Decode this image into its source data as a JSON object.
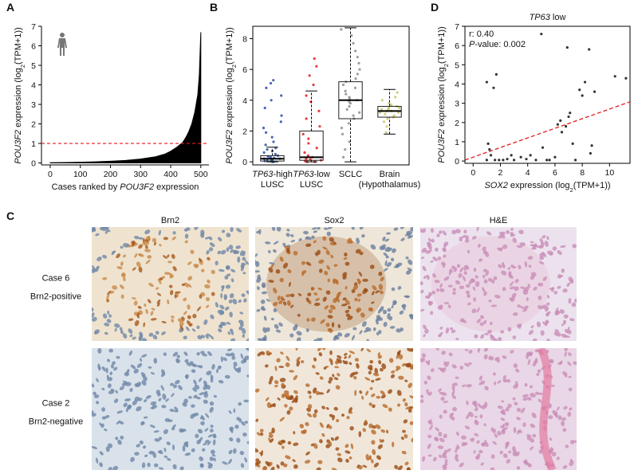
{
  "chart_data": [
    {
      "panel_label": "A",
      "type": "area",
      "x": [
        0,
        50,
        100,
        150,
        200,
        250,
        300,
        350,
        380,
        400,
        420,
        440,
        450,
        460,
        470,
        480,
        490,
        495,
        500
      ],
      "values": [
        0.01,
        0.02,
        0.04,
        0.06,
        0.09,
        0.13,
        0.2,
        0.32,
        0.45,
        0.6,
        0.8,
        1.05,
        1.3,
        1.6,
        2.0,
        2.6,
        3.5,
        4.5,
        6.7
      ],
      "color": "#000000",
      "xlabel": "Cases ranked by POU3F2 expression",
      "ylabel": "POU3F2 expression (log2(TPM+1))",
      "xlim": [
        -29,
        527
      ],
      "xticks": [
        0,
        100,
        200,
        300,
        400,
        500
      ],
      "ylim": [
        -0.1,
        7
      ],
      "yticks": [
        0,
        1,
        2,
        3,
        4,
        5,
        6,
        7
      ],
      "hline": 1,
      "hline_color": "#e41a1c"
    },
    {
      "panel_label": "B",
      "type": "box",
      "categories": [
        [
          "TP63-high",
          "LUSC"
        ],
        [
          "TP63-low",
          "LUSC"
        ],
        [
          "SCLC"
        ],
        [
          "Brain",
          "(Hypothalamus)"
        ]
      ],
      "ylabel": "POU3F2 expression (log2(TPM+1))",
      "ylim": [
        -0.2,
        8.8
      ],
      "yticks": [
        0,
        2,
        4,
        6,
        8
      ],
      "boxes": [
        {
          "color": "#2a4ea6",
          "min": 0,
          "q1": 0.05,
          "median": 0.2,
          "q3": 0.4,
          "max": 0.95,
          "points": [
            0,
            0,
            0.05,
            0.1,
            0.1,
            0.15,
            0.2,
            0.2,
            0.25,
            0.3,
            0.35,
            0.4,
            0.5,
            0.6,
            0.7,
            0.8,
            0.9,
            1.1,
            1.3,
            1.6,
            1.9,
            2.2,
            2.6,
            3.0,
            3.5,
            4.0,
            4.3,
            4.8,
            5.1,
            5.3
          ]
        },
        {
          "color": "#e41a1c",
          "min": 0,
          "q1": 0.1,
          "median": 0.3,
          "q3": 2.0,
          "max": 4.6,
          "points": [
            0,
            0,
            0.05,
            0.1,
            0.15,
            0.2,
            0.3,
            0.4,
            0.6,
            0.9,
            1.2,
            1.5,
            1.8,
            2.3,
            2.8,
            3.3,
            3.9,
            4.3,
            5.0,
            5.6,
            6.2,
            6.7
          ]
        },
        {
          "color": "#8c8c8c",
          "min": 0,
          "q1": 2.8,
          "median": 4.0,
          "q3": 5.2,
          "max": 8.7,
          "points": [
            0.3,
            0.8,
            1.3,
            1.8,
            2.2,
            2.5,
            2.8,
            3.0,
            3.2,
            3.4,
            3.6,
            3.8,
            3.9,
            4.0,
            4.1,
            4.2,
            4.4,
            4.6,
            4.8,
            5.0,
            5.2,
            5.4,
            5.7,
            6.0,
            6.4,
            6.8,
            7.2,
            7.7,
            8.2,
            8.6
          ]
        },
        {
          "color": "#c9c46a",
          "min": 1.8,
          "q1": 2.9,
          "median": 3.3,
          "q3": 3.6,
          "max": 4.7,
          "points": [
            1.9,
            2.3,
            2.6,
            2.8,
            2.9,
            3.0,
            3.1,
            3.2,
            3.2,
            3.3,
            3.3,
            3.4,
            3.4,
            3.5,
            3.5,
            3.6,
            3.7,
            3.8,
            4.0,
            4.2,
            4.5
          ]
        }
      ]
    },
    {
      "panel_label": "D",
      "type": "scatter",
      "title": "TP63 low",
      "annotations": [
        "r: 0.40",
        "P-value: 0.002"
      ],
      "xlabel": "SOX2 expression (log2(TPM+1))",
      "ylabel": "POU3F2 expression (log2(TPM+1))",
      "x": [
        1.0,
        1.5,
        1.7,
        1.1,
        1.2,
        1.3,
        1.0,
        1.6,
        1.9,
        2.2,
        2.5,
        2.8,
        3.0,
        3.5,
        3.9,
        4.2,
        4.6,
        5.0,
        5.1,
        5.4,
        5.6,
        6.0,
        6.2,
        6.4,
        6.5,
        6.9,
        7.0,
        7.1,
        7.3,
        7.5,
        7.8,
        8.0,
        8.2,
        8.5,
        8.6,
        8.7,
        8.9,
        10.4,
        11.2,
        6.8
      ],
      "values": [
        4.1,
        3.8,
        4.5,
        0.9,
        0.6,
        0.3,
        0.05,
        0.05,
        0.05,
        0.05,
        0.1,
        0.3,
        0.05,
        0.2,
        0.1,
        0.3,
        0.05,
        6.6,
        0.7,
        0.05,
        0.05,
        0.2,
        1.9,
        2.1,
        1.5,
        5.9,
        2.3,
        2.5,
        0.9,
        0.05,
        3.7,
        3.4,
        4.1,
        5.8,
        0.4,
        0.8,
        3.6,
        4.4,
        4.3,
        1.8
      ],
      "color": "#333333",
      "fit": {
        "intercept": 0.2,
        "slope": 0.25,
        "color": "#e41a1c"
      },
      "xlim": [
        -0.6,
        11.5
      ],
      "xticks": [
        0,
        2,
        4,
        6,
        8,
        10
      ],
      "ylim": [
        -0.12,
        7
      ],
      "yticks": [
        0,
        1,
        2,
        3,
        4,
        5,
        6,
        7
      ]
    }
  ],
  "panel_c": {
    "panel_label": "C",
    "columns": [
      "Brn2",
      "Sox2",
      "H&E"
    ],
    "rows": [
      [
        "Case 6",
        "Brn2-positive"
      ],
      [
        "Case 2",
        "Brn2-negative"
      ]
    ]
  }
}
